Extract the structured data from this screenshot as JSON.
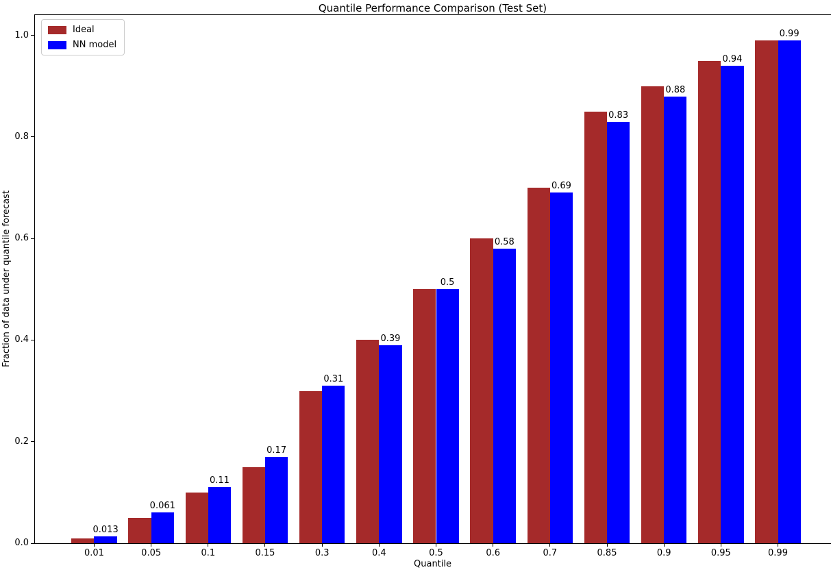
{
  "chart_data": {
    "type": "bar",
    "title": "Quantile Performance Comparison (Test Set)",
    "xlabel": "Quantile",
    "ylabel": "Fraction of data under quantile forecast",
    "categories": [
      "0.01",
      "0.05",
      "0.1",
      "0.15",
      "0.3",
      "0.4",
      "0.5",
      "0.6",
      "0.7",
      "0.85",
      "0.9",
      "0.95",
      "0.99"
    ],
    "series": [
      {
        "name": "Ideal",
        "color": "#A52A2A",
        "values": [
          0.01,
          0.05,
          0.1,
          0.15,
          0.3,
          0.4,
          0.5,
          0.6,
          0.7,
          0.85,
          0.9,
          0.95,
          0.99
        ]
      },
      {
        "name": "NN model",
        "color": "#0000FF",
        "values": [
          0.013,
          0.061,
          0.11,
          0.17,
          0.31,
          0.39,
          0.5,
          0.58,
          0.69,
          0.83,
          0.88,
          0.94,
          0.99
        ],
        "labels": [
          "0.013",
          "0.061",
          "0.11",
          "0.17",
          "0.31",
          "0.39",
          "0.5",
          "0.58",
          "0.69",
          "0.83",
          "0.88",
          "0.94",
          "0.99"
        ]
      }
    ],
    "yticks": [
      "0.0",
      "0.2",
      "0.4",
      "0.6",
      "0.8",
      "1.0"
    ],
    "ylim": [
      0,
      1.04
    ],
    "xlim_index": [
      -1.04,
      13.04
    ],
    "bar_width_index": 0.4,
    "series_offsets_index": [
      -0.2,
      0.2
    ],
    "grid": false,
    "legend_position": "upper-left"
  }
}
